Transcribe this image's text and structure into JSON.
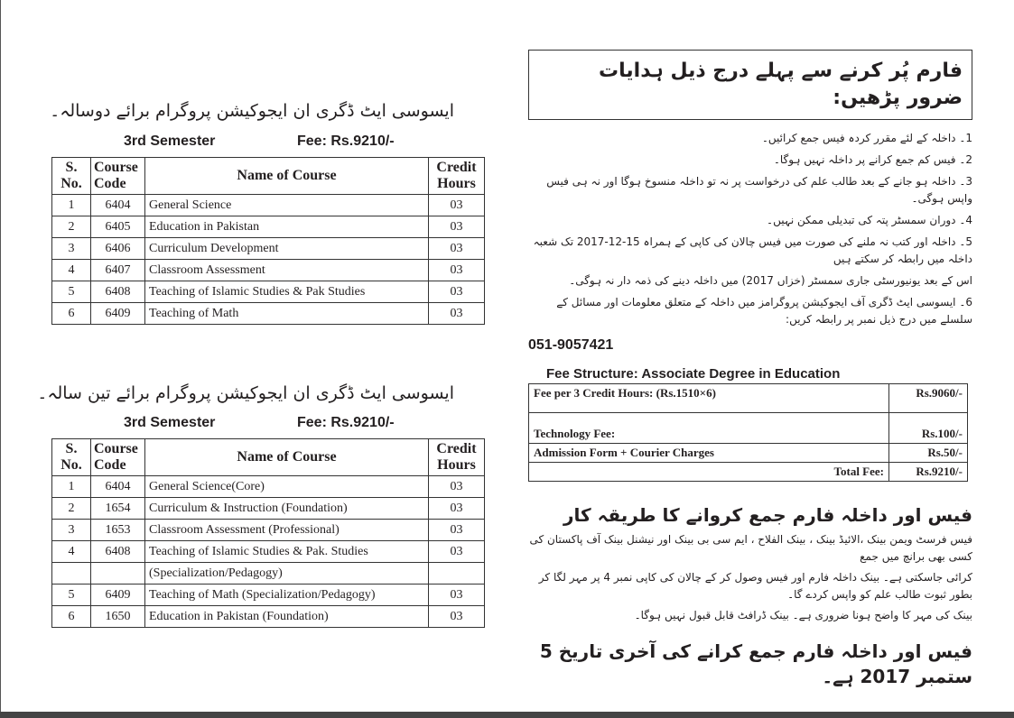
{
  "left": {
    "program_two_year": "ایسوسی ایٹ ڈگری ان ایجوکیشن پروگرام برائے دوسالہ۔",
    "program_three_year": "ایسوسی ایٹ ڈگری ان ایجوکیشن پروگرام برائے تین سالہ۔",
    "semester": "3rd  Semester",
    "fee": "Fee:  Rs.9210/-",
    "headers": {
      "sno_1": "S.",
      "sno_2": "No.",
      "code_1": "Course",
      "code_2": "Code",
      "name": "Name of Course",
      "credit_1": "Credit",
      "credit_2": "Hours"
    },
    "table1": [
      {
        "sno": "1",
        "code": "6404",
        "name": "General Science",
        "credit": "03"
      },
      {
        "sno": "2",
        "code": "6405",
        "name": "Education in Pakistan",
        "credit": "03"
      },
      {
        "sno": "3",
        "code": "6406",
        "name": "Curriculum Development",
        "credit": "03"
      },
      {
        "sno": "4",
        "code": "6407",
        "name": "Classroom Assessment",
        "credit": "03"
      },
      {
        "sno": "5",
        "code": "6408",
        "name": "Teaching of Islamic Studies & Pak Studies",
        "credit": "03"
      },
      {
        "sno": "6",
        "code": "6409",
        "name": "Teaching of Math",
        "credit": "03"
      }
    ],
    "table2": [
      {
        "sno": "1",
        "code": "6404",
        "name": "General Science(Core)",
        "credit": "03"
      },
      {
        "sno": "2",
        "code": "1654",
        "name": "Curriculum & Instruction (Foundation)",
        "credit": "03"
      },
      {
        "sno": "3",
        "code": "1653",
        "name": "Classroom Assessment (Professional)",
        "credit": "03"
      },
      {
        "sno": "4",
        "code": "6408",
        "name": "Teaching of Islamic Studies & Pak. Studies",
        "name_2": "(Specialization/Pedagogy)",
        "credit": "03"
      },
      {
        "sno": "5",
        "code": "6409",
        "name": "Teaching of Math (Specialization/Pedagogy)",
        "credit": "03"
      },
      {
        "sno": "6",
        "code": "1650",
        "name": "Education in Pakistan (Foundation)",
        "credit": "03"
      }
    ]
  },
  "right": {
    "instructions_heading": "فارم پُر کرنے سے پہلے درج ذیل ہدایات ضرور پڑھیں:",
    "instructions": [
      "1۔ داخلہ کے لئے مقرر کردہ فیس جمع کرائیں۔",
      "2۔ فیس کم جمع کرانے پر داخلہ نہیں ہوگا۔",
      "3۔ داخلہ ہو جانے کے بعد طالب علم کی درخواست پر نہ تو داخلہ منسوخ ہوگا اور نہ ہی فیس واپس ہوگی۔",
      "4۔ دوران سمسٹر پتہ کی تبدیلی ممکن نہیں۔",
      "5۔ داخلہ اور کتب نہ ملنے کی صورت میں فیس چالان کی کاپی کے ہمراہ 15-12-2017 تک شعبہ داخلہ میں رابطہ کر سکتے ہیں",
      "اس کے بعد یونیورسٹی جاری سمسٹر (خزاں 2017) میں داخلہ دینے کی ذمہ دار نہ ہوگی۔",
      "6۔ ایسوسی ایٹ ڈگری آف ایجوکیشن پروگرامز میں داخلہ کے متعلق معلومات اور مسائل کے سلسلے میں درج ذیل نمبر پر رابطہ کریں:"
    ],
    "phone": "051-9057421",
    "fee_title_bold": "Fee Structure:",
    "fee_title_rest": " Associate Degree in Education",
    "fee_rows": [
      {
        "label": "Fee per 3 Credit Hours: (Rs.1510×6)",
        "amount": "Rs.9060/-"
      },
      {
        "label": "Technology Fee:",
        "amount": "Rs.100/-"
      },
      {
        "label": "Admission Form  +  Courier Charges",
        "amount": "Rs.50/-"
      },
      {
        "label": "Total Fee:",
        "amount": "Rs.9210/-"
      }
    ],
    "method_heading": "فیس اور داخلہ فارم جمع کروانے کا طریقہ کار",
    "method_lines": [
      "فیس فرسٹ ویمن بینک ،الائیڈ بینک ، بینک الفلاح ، ایم سی بی بینک اور نیشنل بینک آف پاکستان کی کسی بھی برانچ میں جمع",
      "کرائی جاسکتی ہے۔ بینک داخلہ فارم اور فیس وصول کر کے چالان کی کاپی نمبر 4 پر مہر لگا کر بطور ثبوت طالب علم کو واپس کردے گا۔",
      "بینک کی مہر کا واضح ہونا ضروری ہے۔ بینک ڈرافٹ قابل قبول نہیں ہوگا۔"
    ],
    "deadline": "فیس اور داخلہ فارم جمع کرانے کی آخری تاریخ 5 ستمبر 2017 ہے۔"
  }
}
